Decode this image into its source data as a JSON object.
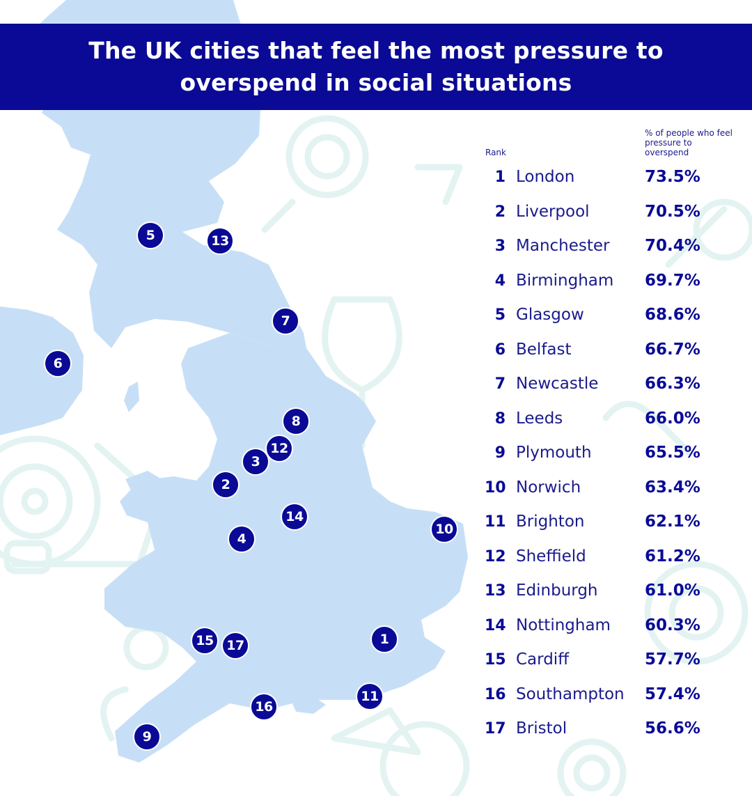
{
  "title": "The UK cities that feel the most pressure to overspend in social situations",
  "table": {
    "rank_header": "Rank",
    "pct_header": "% of people who feel pressure to overspend"
  },
  "colors": {
    "navy": "#0a0a96",
    "land": "#c7dff6",
    "decor": "#e3f3f1"
  },
  "cities": [
    {
      "rank": "1",
      "name": "London",
      "pct": "73.5%"
    },
    {
      "rank": "2",
      "name": "Liverpool",
      "pct": "70.5%"
    },
    {
      "rank": "3",
      "name": "Manchester",
      "pct": "70.4%"
    },
    {
      "rank": "4",
      "name": "Birmingham",
      "pct": "69.7%"
    },
    {
      "rank": "5",
      "name": "Glasgow",
      "pct": "68.6%"
    },
    {
      "rank": "6",
      "name": "Belfast",
      "pct": "66.7%"
    },
    {
      "rank": "7",
      "name": "Newcastle",
      "pct": "66.3%"
    },
    {
      "rank": "8",
      "name": "Leeds",
      "pct": "66.0%"
    },
    {
      "rank": "9",
      "name": "Plymouth",
      "pct": "65.5%"
    },
    {
      "rank": "10",
      "name": "Norwich",
      "pct": "63.4%"
    },
    {
      "rank": "11",
      "name": "Brighton",
      "pct": "62.1%"
    },
    {
      "rank": "12",
      "name": "Sheffield",
      "pct": "61.2%"
    },
    {
      "rank": "13",
      "name": "Edinburgh",
      "pct": "61.0%"
    },
    {
      "rank": "14",
      "name": "Nottingham",
      "pct": "60.3%"
    },
    {
      "rank": "15",
      "name": "Cardiff",
      "pct": "57.7%"
    },
    {
      "rank": "16",
      "name": "Southampton",
      "pct": "57.4%"
    },
    {
      "rank": "17",
      "name": "Bristol",
      "pct": "56.6%"
    }
  ]
}
